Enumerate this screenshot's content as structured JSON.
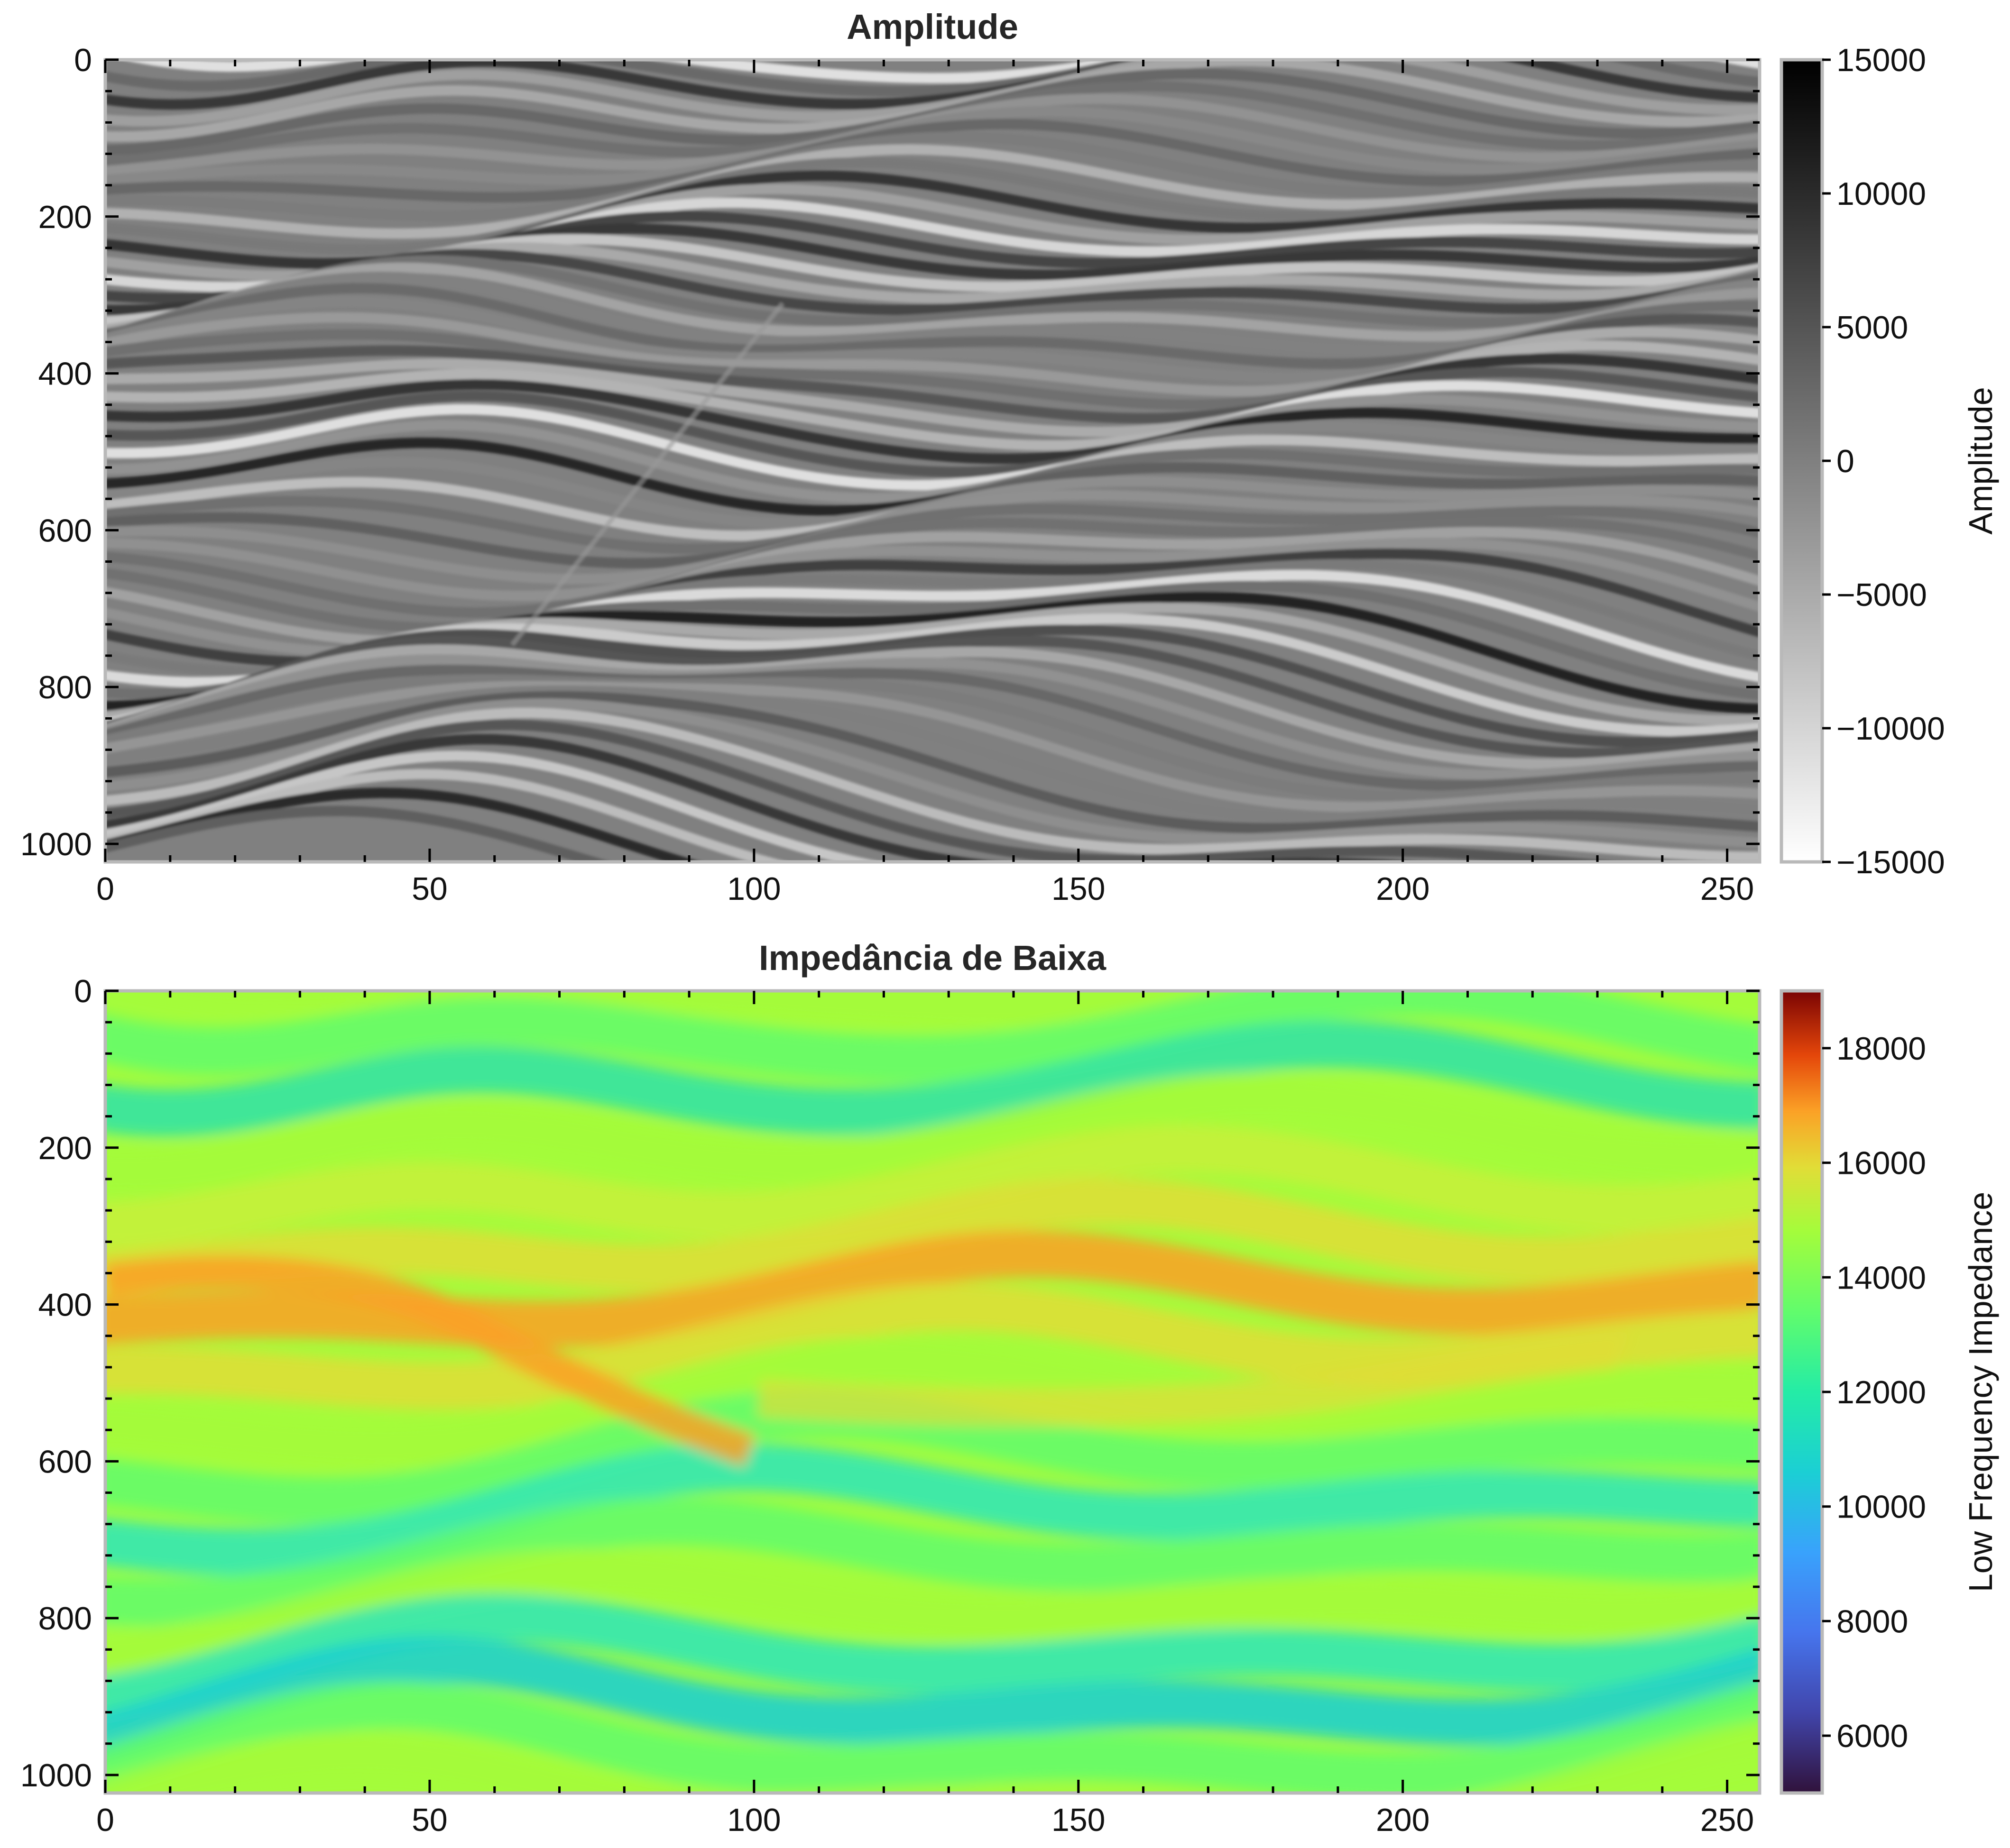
{
  "chart_data": [
    {
      "type": "heatmap",
      "title": "Amplitude",
      "xlabel": "",
      "ylabel": "",
      "xlim": [
        0,
        255
      ],
      "ylim": [
        1023,
        0
      ],
      "x_ticks": [
        0,
        50,
        100,
        150,
        200,
        250
      ],
      "y_ticks": [
        0,
        200,
        400,
        600,
        800,
        1000
      ],
      "colormap": "gray_r",
      "colorbar": {
        "label": "Amplitude",
        "range": [
          -15000,
          15000
        ],
        "ticks": [
          15000,
          10000,
          5000,
          0,
          -5000,
          -10000,
          -15000
        ],
        "tick_labels": [
          "15000",
          "10000",
          "5000",
          "0",
          "−5000",
          "−10000",
          "−15000"
        ]
      }
    },
    {
      "type": "heatmap",
      "title": "Impedância de Baixa",
      "xlabel": "",
      "ylabel": "",
      "xlim": [
        0,
        255
      ],
      "ylim": [
        1023,
        0
      ],
      "x_ticks": [
        0,
        50,
        100,
        150,
        200,
        250
      ],
      "y_ticks": [
        0,
        200,
        400,
        600,
        800,
        1000
      ],
      "colormap": "turbo",
      "colorbar": {
        "label": "Low Frequency Impedance",
        "range": [
          5000,
          19000
        ],
        "ticks": [
          18000,
          16000,
          14000,
          12000,
          10000,
          8000,
          6000
        ],
        "tick_labels": [
          "18000",
          "16000",
          "14000",
          "12000",
          "10000",
          "8000",
          "6000"
        ]
      }
    }
  ]
}
